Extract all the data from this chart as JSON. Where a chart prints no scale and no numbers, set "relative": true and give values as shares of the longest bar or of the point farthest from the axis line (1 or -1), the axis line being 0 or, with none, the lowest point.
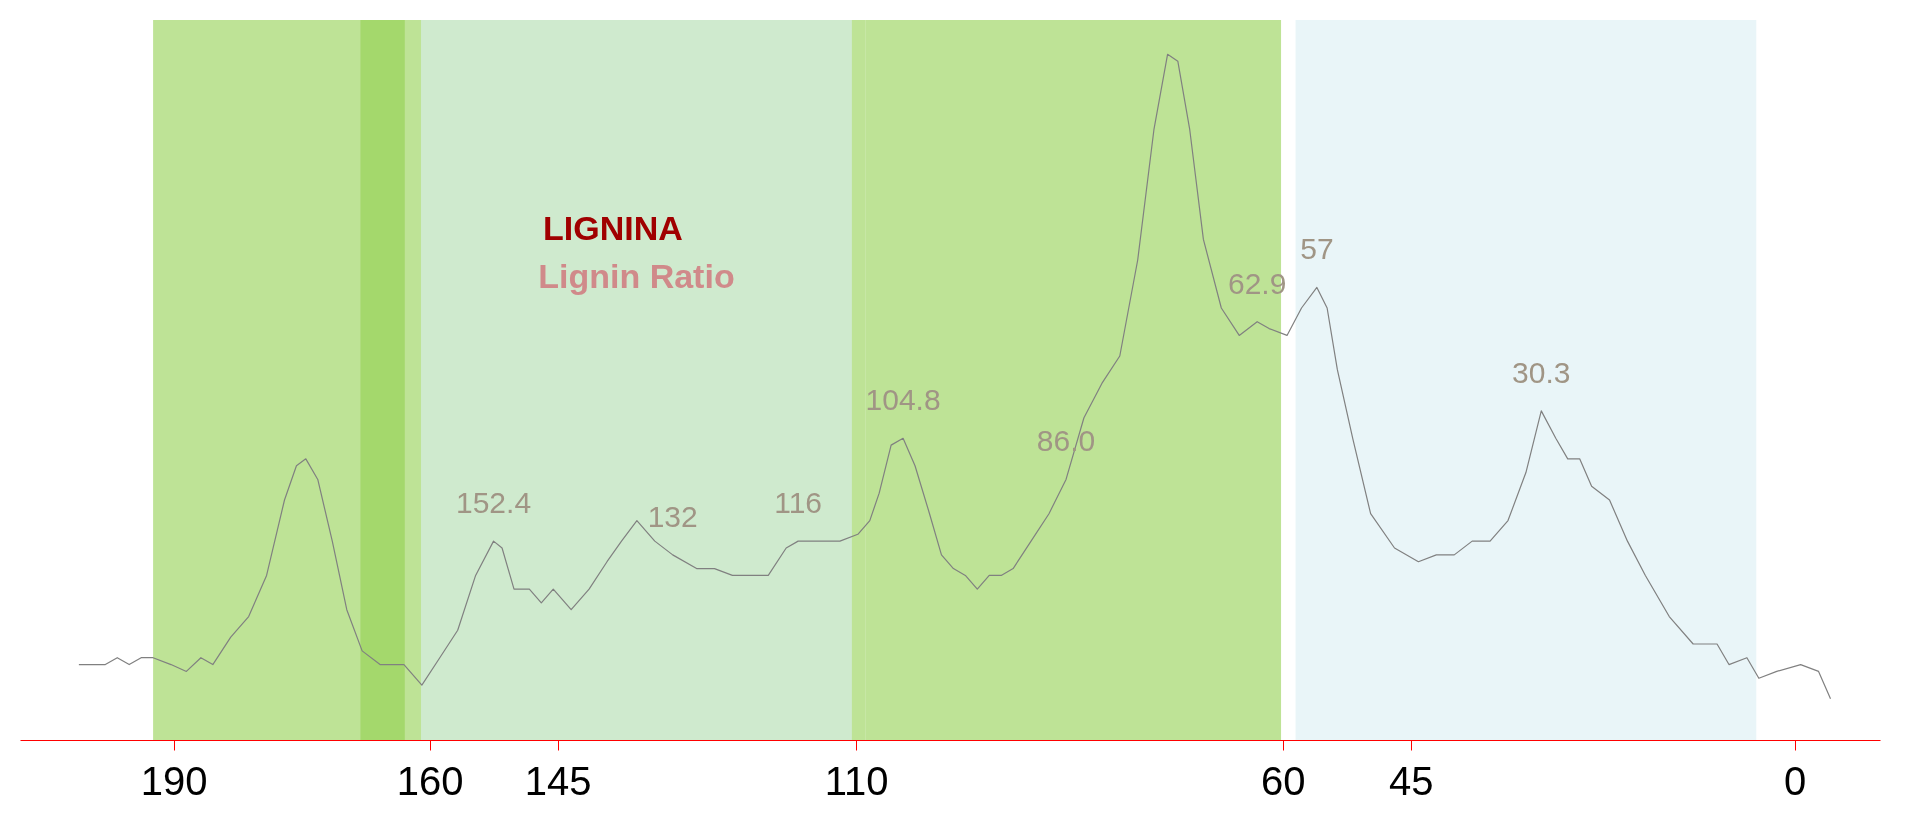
{
  "chart_data": {
    "type": "line",
    "relative": true,
    "xlim": [
      208,
      -10
    ],
    "xticks": [
      190,
      160,
      145,
      110,
      60,
      45,
      0
    ],
    "grid": false,
    "marker": "none",
    "line_style": "solid",
    "x": [
      201.1,
      198.0,
      196.6,
      195.2,
      193.8,
      192.4,
      190.3,
      188.5,
      186.8,
      185.4,
      183.3,
      181.2,
      179.1,
      177.0,
      175.6,
      174.5,
      173.1,
      171.4,
      169.7,
      167.9,
      165.8,
      164.4,
      163.0,
      160.9,
      158.8,
      156.7,
      154.6,
      152.5,
      151.5,
      150.1,
      148.3,
      146.9,
      145.5,
      143.4,
      141.3,
      139.2,
      137.5,
      135.7,
      133.6,
      131.5,
      128.7,
      126.6,
      124.5,
      122.4,
      120.3,
      118.2,
      116.8,
      115.4,
      114.0,
      111.9,
      109.8,
      108.4,
      107.3,
      105.9,
      104.5,
      103.1,
      101.4,
      100.0,
      98.6,
      97.2,
      95.8,
      94.4,
      93.0,
      91.6,
      89.5,
      87.4,
      85.4,
      83.3,
      81.2,
      79.1,
      77.0,
      75.1,
      73.5,
      72.3,
      70.9,
      69.3,
      67.2,
      65.1,
      63.0,
      61.6,
      59.5,
      57.8,
      56.0,
      54.8,
      53.6,
      51.8,
      49.7,
      46.9,
      44.1,
      42.0,
      39.9,
      37.8,
      35.7,
      33.6,
      31.5,
      29.7,
      28.0,
      26.6,
      25.2,
      23.8,
      21.7,
      19.6,
      17.5,
      14.7,
      11.9,
      9.1,
      7.7,
      5.6,
      4.2,
      2.1,
      -0.7,
      -2.8,
      -4.2
    ],
    "series": [
      {
        "color": "#808080",
        "values": [
          0.11,
          0.11,
          0.12,
          0.11,
          0.12,
          0.12,
          0.11,
          0.1,
          0.12,
          0.11,
          0.15,
          0.18,
          0.24,
          0.35,
          0.4,
          0.41,
          0.38,
          0.29,
          0.19,
          0.13,
          0.11,
          0.11,
          0.11,
          0.08,
          0.12,
          0.16,
          0.24,
          0.29,
          0.28,
          0.22,
          0.22,
          0.2,
          0.22,
          0.19,
          0.22,
          0.26,
          0.29,
          0.32,
          0.29,
          0.27,
          0.25,
          0.25,
          0.24,
          0.24,
          0.24,
          0.28,
          0.29,
          0.29,
          0.29,
          0.29,
          0.3,
          0.32,
          0.36,
          0.43,
          0.44,
          0.4,
          0.33,
          0.27,
          0.25,
          0.24,
          0.22,
          0.24,
          0.24,
          0.25,
          0.29,
          0.33,
          0.38,
          0.47,
          0.52,
          0.56,
          0.7,
          0.89,
          1,
          0.99,
          0.89,
          0.73,
          0.63,
          0.59,
          0.61,
          0.6,
          0.59,
          0.63,
          0.66,
          0.63,
          0.54,
          0.44,
          0.33,
          0.28,
          0.26,
          0.27,
          0.27,
          0.29,
          0.29,
          0.32,
          0.39,
          0.48,
          0.44,
          0.41,
          0.41,
          0.37,
          0.35,
          0.29,
          0.24,
          0.18,
          0.14,
          0.14,
          0.11,
          0.12,
          0.09,
          0.1,
          0.11,
          0.1,
          0.06
        ]
      }
    ],
    "bands": [
      {
        "axis": "x",
        "from": 192.4,
        "to": 162.9,
        "color": "#92d050"
      },
      {
        "axis": "x",
        "from": 168.1,
        "to": 108.9,
        "label": "LIGNINA",
        "color": "#92d050"
      },
      {
        "axis": "x",
        "from": 161.0,
        "to": 110.5,
        "label": "Lignin Ratio",
        "color": "#daeef3"
      },
      {
        "axis": "x",
        "from": 108.9,
        "to": 60.2,
        "color": "#92d050"
      },
      {
        "axis": "x",
        "from": 58.5,
        "to": 4.5,
        "color": "#daeef3"
      }
    ],
    "annotations": [
      {
        "text": "152.4",
        "x": 152.5,
        "y": 0.29
      },
      {
        "text": "132",
        "x": 131.5,
        "y": 0.27
      },
      {
        "text": "116",
        "x": 116.8,
        "y": 0.29
      },
      {
        "text": "104.8",
        "x": 104.5,
        "y": 0.44
      },
      {
        "text": "86.0",
        "x": 85.4,
        "y": 0.38
      },
      {
        "text": "62.9",
        "x": 63.0,
        "y": 0.61
      },
      {
        "text": "57",
        "x": 56.0,
        "y": 0.66
      },
      {
        "text": "30.3",
        "x": 29.7,
        "y": 0.48
      }
    ]
  }
}
